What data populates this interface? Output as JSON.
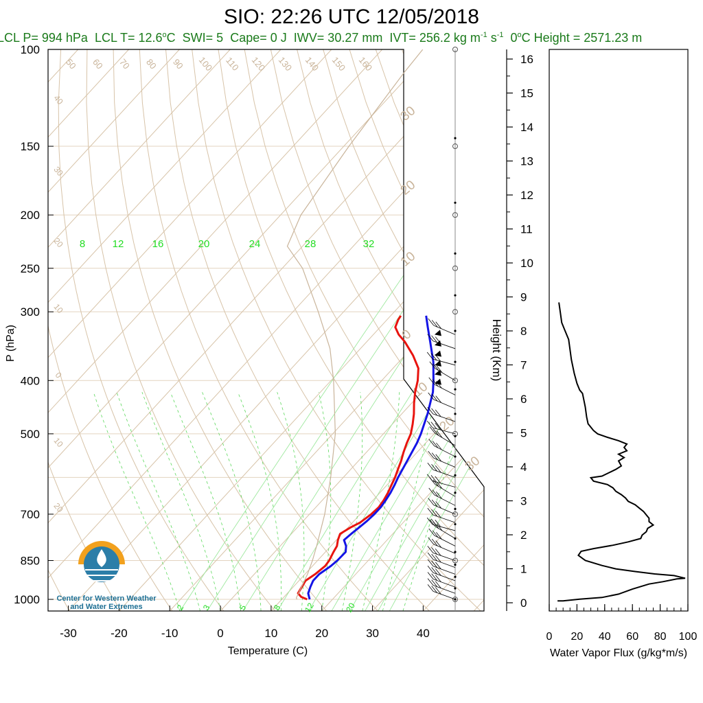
{
  "title": "SIO: 22:26 UTC 12/05/2018",
  "stats": {
    "lcl_p": "LCL P= 994 hPa",
    "lcl_t": "LCL T= 12.6",
    "lcl_t_unit": "C",
    "swi": "SWI= 5",
    "cape": "Cape= 0 J",
    "iwv": "IWV= 30.27 mm",
    "ivt": "IVT= 256.2 kg m",
    "zero_height": "0",
    "zero_height_value": "C Height = 2571.23 m"
  },
  "logo": {
    "line1": "Center for Western Weather",
    "line2": "and Water Extremes"
  },
  "colors": {
    "temperature": "#e8140f",
    "dewpoint": "#1414e6",
    "mixing_ratio": "#22dd22",
    "isotherm": "#d7c3a8",
    "parcel": "#c9b49a"
  },
  "chart_data": [
    {
      "type": "line",
      "subtype": "skew-T log-P",
      "xlabel": "Temperature (C)",
      "ylabel": "P (hPa)",
      "xlim": [
        -34,
        52
      ],
      "ylim": [
        1050,
        100
      ],
      "y_scale": "log",
      "x_ticks": [
        -30,
        -20,
        -10,
        0,
        10,
        20,
        30,
        40
      ],
      "y_ticks": [
        100,
        150,
        200,
        250,
        300,
        400,
        500,
        700,
        850,
        1000
      ],
      "right_axis": {
        "label": "Height (Km)",
        "ticks": [
          0,
          1,
          2,
          3,
          4,
          5,
          6,
          7,
          8,
          9,
          10,
          11,
          12,
          13,
          14,
          15,
          16
        ]
      },
      "mixing_ratio_labels_top": [
        "8",
        "12",
        "16",
        "20",
        "24",
        "28",
        "32"
      ],
      "mixing_ratio_labels_bottom": [
        "2",
        "3",
        "5",
        "8",
        "12",
        "20"
      ],
      "moist_adiabat_labels": [
        "50",
        "60",
        "70",
        "80",
        "90",
        "100",
        "110",
        "120",
        "130",
        "140",
        "150",
        "160"
      ],
      "isotherm_edge_labels": [
        "40",
        "30",
        "20",
        "10",
        "0",
        "10",
        "20"
      ],
      "isotherm_skew_labels": [
        "30",
        "20",
        "10",
        "0",
        "10",
        "20",
        "30"
      ],
      "series": [
        {
          "name": "",
          "color": "#e8140f",
          "points": [
            [
              1000,
              15
            ],
            [
              990,
              13.4
            ],
            [
              975,
              12.1
            ],
            [
              950,
              11.7
            ],
            [
              925,
              11.3
            ],
            [
              900,
              12
            ],
            [
              870,
              12.5
            ],
            [
              850,
              12.3
            ],
            [
              820,
              11.6
            ],
            [
              800,
              11.2
            ],
            [
              780,
              10.3
            ],
            [
              760,
              9.6
            ],
            [
              740,
              10.5
            ],
            [
              725,
              11.5
            ],
            [
              700,
              12.2
            ],
            [
              680,
              12.4
            ],
            [
              660,
              12.1
            ],
            [
              640,
              11.6
            ],
            [
              620,
              10.9
            ],
            [
              600,
              10.2
            ],
            [
              580,
              9.3
            ],
            [
              560,
              8.4
            ],
            [
              540,
              7.3
            ],
            [
              520,
              6.3
            ],
            [
              500,
              5.4
            ],
            [
              480,
              4
            ],
            [
              460,
              2.4
            ],
            [
              440,
              0.5
            ],
            [
              420,
              -1.3
            ],
            [
              400,
              -2.9
            ],
            [
              380,
              -5
            ],
            [
              360,
              -8.4
            ],
            [
              340,
              -12.5
            ],
            [
              330,
              -15
            ],
            [
              320,
              -17
            ],
            [
              310,
              -17.8
            ],
            [
              305,
              -18
            ]
          ]
        },
        {
          "name": "",
          "color": "#1414e6",
          "points": [
            [
              1000,
              15.5
            ],
            [
              975,
              14.1
            ],
            [
              950,
              13.4
            ],
            [
              925,
              12.8
            ],
            [
              900,
              12.8
            ],
            [
              870,
              13.6
            ],
            [
              850,
              13.9
            ],
            [
              820,
              14
            ],
            [
              800,
              13
            ],
            [
              780,
              11.5
            ],
            [
              760,
              11.8
            ],
            [
              740,
              12.2
            ],
            [
              720,
              12.6
            ],
            [
              700,
              12.8
            ],
            [
              680,
              12.8
            ],
            [
              660,
              12.5
            ],
            [
              640,
              12.1
            ],
            [
              620,
              11.5
            ],
            [
              600,
              10.8
            ],
            [
              560,
              9.6
            ],
            [
              520,
              8.3
            ],
            [
              500,
              7.4
            ],
            [
              460,
              5.1
            ],
            [
              420,
              2.2
            ],
            [
              400,
              0.2
            ],
            [
              370,
              -3.2
            ],
            [
              340,
              -7.5
            ],
            [
              320,
              -10.6
            ],
            [
              305,
              -13
            ]
          ]
        },
        {
          "name": "",
          "color": "#c9b49a",
          "points": [
            [
              1000,
              13
            ],
            [
              994,
              12.6
            ],
            [
              900,
              10.5
            ],
            [
              850,
              9
            ],
            [
              800,
              7.2
            ],
            [
              700,
              3
            ],
            [
              600,
              -2.5
            ],
            [
              500,
              -9.5
            ],
            [
              400,
              -19.5
            ],
            [
              350,
              -26
            ],
            [
              300,
              -35
            ],
            [
              250,
              -46
            ],
            [
              228,
              -53
            ],
            [
              200,
              -56
            ],
            [
              150,
              -59
            ],
            [
              110,
              -61.5
            ],
            [
              100,
              -62
            ]
          ]
        }
      ],
      "wind_barb_pressure_levels": [
        1000,
        975,
        950,
        925,
        900,
        875,
        850,
        825,
        800,
        775,
        750,
        725,
        700,
        675,
        650,
        625,
        600,
        575,
        550,
        525,
        500,
        475,
        450,
        425,
        400,
        375,
        350,
        330
      ]
    },
    {
      "type": "line",
      "xlabel": "Water Vapor Flux (g/kg*m/s)",
      "ylabel": "",
      "xlim": [
        0,
        100
      ],
      "ylim": [
        -0.25,
        16.4
      ],
      "x_ticks": [
        0,
        20,
        40,
        60,
        80,
        100
      ],
      "series": [
        {
          "name": "",
          "color": "#000000",
          "points": [
            [
              6,
              0.05
            ],
            [
              10,
              0.05
            ],
            [
              22,
              0.1
            ],
            [
              38,
              0.15
            ],
            [
              50,
              0.25
            ],
            [
              60,
              0.4
            ],
            [
              72,
              0.55
            ],
            [
              82,
              0.62
            ],
            [
              92,
              0.7
            ],
            [
              98,
              0.72
            ],
            [
              90,
              0.8
            ],
            [
              76,
              0.85
            ],
            [
              62,
              0.92
            ],
            [
              48,
              1.0
            ],
            [
              38,
              1.1
            ],
            [
              26,
              1.25
            ],
            [
              21,
              1.4
            ],
            [
              23,
              1.52
            ],
            [
              32,
              1.6
            ],
            [
              46,
              1.7
            ],
            [
              57,
              1.8
            ],
            [
              66,
              1.9
            ],
            [
              67,
              2.0
            ],
            [
              70,
              2.1
            ],
            [
              71,
              2.2
            ],
            [
              75,
              2.3
            ],
            [
              72,
              2.4
            ],
            [
              72,
              2.5
            ],
            [
              70,
              2.6
            ],
            [
              68,
              2.7
            ],
            [
              65,
              2.8
            ],
            [
              62,
              2.9
            ],
            [
              57,
              3.0
            ],
            [
              55,
              3.1
            ],
            [
              52,
              3.2
            ],
            [
              48,
              3.3
            ],
            [
              46,
              3.4
            ],
            [
              42,
              3.5
            ],
            [
              32,
              3.6
            ],
            [
              30,
              3.7
            ],
            [
              38,
              3.75
            ],
            [
              43,
              3.85
            ],
            [
              48,
              3.95
            ],
            [
              52,
              4.05
            ],
            [
              50,
              4.2
            ],
            [
              54,
              4.3
            ],
            [
              50,
              4.4
            ],
            [
              56,
              4.5
            ],
            [
              54,
              4.6
            ],
            [
              56,
              4.7
            ],
            [
              50,
              4.8
            ],
            [
              42,
              4.9
            ],
            [
              35,
              5.0
            ],
            [
              32,
              5.1
            ],
            [
              28,
              5.3
            ],
            [
              27,
              5.5
            ],
            [
              26,
              5.8
            ],
            [
              25,
              6.0
            ],
            [
              24,
              6.2
            ],
            [
              22,
              6.3
            ],
            [
              20,
              6.5
            ],
            [
              18,
              6.8
            ],
            [
              16,
              7.2
            ],
            [
              15,
              7.5
            ],
            [
              14,
              7.8
            ],
            [
              11,
              8.1
            ],
            [
              9,
              8.3
            ],
            [
              8,
              8.6
            ],
            [
              7,
              8.9
            ]
          ]
        }
      ]
    }
  ]
}
